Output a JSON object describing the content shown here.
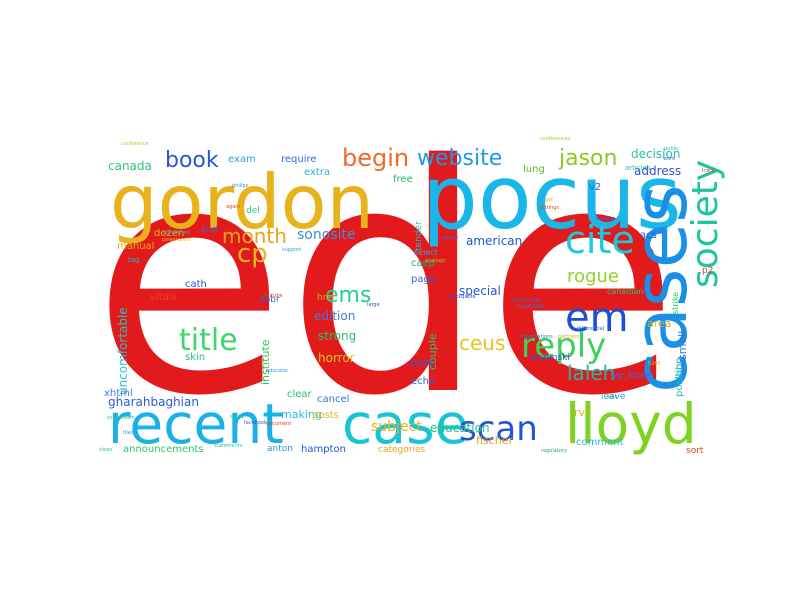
{
  "words": [
    {
      "text": "ede",
      "color": "#e31a1c"
    },
    {
      "text": "pocus",
      "color": "#1ab6e8"
    },
    {
      "text": "gordon",
      "color": "#e8b21c"
    },
    {
      "text": "cases",
      "color": "#1a8fe8"
    },
    {
      "text": "recent",
      "color": "#1ab0e8"
    },
    {
      "text": "case",
      "color": "#18c3d6"
    },
    {
      "text": "lloyd",
      "color": "#7ed321"
    },
    {
      "text": "em",
      "color": "#1b50d6"
    },
    {
      "text": "cite",
      "color": "#19c9e0"
    },
    {
      "text": "society",
      "color": "#1bc59f"
    },
    {
      "text": "reply",
      "color": "#3bd15a"
    },
    {
      "text": "scan",
      "color": "#2154d8"
    },
    {
      "text": "title",
      "color": "#3fd66c"
    },
    {
      "text": "website",
      "color": "#1a9be8"
    },
    {
      "text": "begin",
      "color": "#f06a2a"
    },
    {
      "text": "book",
      "color": "#2a55d6"
    },
    {
      "text": "jason",
      "color": "#8ac926"
    },
    {
      "text": "cp",
      "color": "#e6b91e"
    },
    {
      "text": "month",
      "color": "#e6a51e"
    },
    {
      "text": "ems",
      "color": "#1fd196"
    },
    {
      "text": "ceus",
      "color": "#e6c21e"
    },
    {
      "text": "laleh",
      "color": "#20b9a1"
    },
    {
      "text": "rogue",
      "color": "#8fd22b"
    },
    {
      "text": "sonosite",
      "color": "#3f8cd9"
    },
    {
      "text": "subject",
      "color": "#e0b51e"
    },
    {
      "text": "education",
      "color": "#28c57a"
    },
    {
      "text": "gharahbaghian",
      "color": "#2a5bd6"
    },
    {
      "text": "uncomfortable",
      "color": "#28c2c6"
    },
    {
      "text": "edition",
      "color": "#3f7be0"
    },
    {
      "text": "strong",
      "color": "#20c36a"
    },
    {
      "text": "horror",
      "color": "#e0c61e"
    },
    {
      "text": "special",
      "color": "#2b55d6"
    },
    {
      "text": "american",
      "color": "#1b55d0"
    },
    {
      "text": "address",
      "color": "#2a4fd4"
    },
    {
      "text": "decision",
      "color": "#27c3a0"
    },
    {
      "text": "canada",
      "color": "#2fc476"
    },
    {
      "text": "exam",
      "color": "#2aa0e0"
    },
    {
      "text": "require",
      "color": "#3a63d6"
    },
    {
      "text": "extra",
      "color": "#28b6cc"
    },
    {
      "text": "free",
      "color": "#2ab85f"
    },
    {
      "text": "lung",
      "color": "#5cbb2a"
    },
    {
      "text": "dozen",
      "color": "#e0b51e"
    },
    {
      "text": "end",
      "color": "#3a68d2"
    },
    {
      "text": "del",
      "color": "#2bc28c"
    },
    {
      "text": "manual",
      "color": "#e0b21e"
    },
    {
      "text": "caep",
      "color": "#20a890"
    },
    {
      "text": "page",
      "color": "#2f62d6"
    },
    {
      "text": "acs",
      "color": "#2b61d6"
    },
    {
      "text": "v2",
      "color": "#2a6ad6"
    },
    {
      "text": "cath",
      "color": "#2558d0"
    },
    {
      "text": "vitals",
      "color": "#e44422"
    },
    {
      "text": "skin",
      "color": "#27b39a"
    },
    {
      "text": "abbr",
      "color": "#2a5fd6"
    },
    {
      "text": "href",
      "color": "#e0a51e"
    },
    {
      "text": "institute",
      "color": "#35c35a"
    },
    {
      "text": "couple",
      "color": "#38c36a"
    },
    {
      "text": "peds",
      "color": "#2a5ad4"
    },
    {
      "text": "echo",
      "color": "#3060d6"
    },
    {
      "text": "olszynski",
      "color": "#2a4fd0"
    },
    {
      "text": "canadian",
      "color": "#2fbe72"
    },
    {
      "text": "area",
      "color": "#d4b620"
    },
    {
      "text": "small",
      "color": "#3a73d6"
    },
    {
      "text": "lab",
      "color": "#38b2cc"
    },
    {
      "text": "position",
      "color": "#2bb3c6"
    },
    {
      "text": "strike",
      "color": "#2ac06e"
    },
    {
      "text": "p2",
      "color": "#e04422"
    },
    {
      "text": "xhtml",
      "color": "#3c7bd6"
    },
    {
      "text": "making",
      "color": "#27bedc"
    },
    {
      "text": "clear",
      "color": "#2bc07a"
    },
    {
      "text": "cancel",
      "color": "#3a70d6"
    },
    {
      "text": "posts",
      "color": "#e0b21e"
    },
    {
      "text": "fischer",
      "color": "#e0a51e"
    },
    {
      "text": "rv",
      "color": "#e0b21e"
    },
    {
      "text": "leave",
      "color": "#2a9ad6"
    },
    {
      "text": "wp_footer",
      "color": "#3a6cd6"
    },
    {
      "text": "comment",
      "color": "#2bb7d0"
    },
    {
      "text": "sort",
      "color": "#e44422"
    },
    {
      "text": "announcements",
      "color": "#2ec46a"
    },
    {
      "text": "anton",
      "color": "#2b95d0"
    },
    {
      "text": "hampton",
      "color": "#2155d6"
    },
    {
      "text": "categories",
      "color": "#e0a81e"
    },
    {
      "text": "tender",
      "color": "#2ab5c6"
    },
    {
      "text": "select",
      "color": "#3aa0d6"
    },
    {
      "text": "tag",
      "color": "#27bcc6"
    },
    {
      "text": "articles",
      "color": "#2bc2a0"
    },
    {
      "text": "conference",
      "color": "#9ad33a"
    },
    {
      "text": "support",
      "color": "#2aa0e0"
    },
    {
      "text": "organizations",
      "color": "#2a7fd6"
    },
    {
      "text": "partners",
      "color": "#e0a81e"
    },
    {
      "text": "differential",
      "color": "#2b62d6"
    },
    {
      "text": "solostream",
      "color": "#2bc290"
    },
    {
      "text": "youtube",
      "color": "#e04422"
    },
    {
      "text": "homemade",
      "color": "#2a70d6"
    },
    {
      "text": "regulatory",
      "color": "#2aa07e"
    },
    {
      "text": "facebook",
      "color": "#2a62d6"
    },
    {
      "text": "statements",
      "color": "#38c2a0"
    },
    {
      "text": "blackquote",
      "color": "#2b55d6"
    },
    {
      "text": "analogic",
      "color": "#8ad33a"
    },
    {
      "text": "settings",
      "color": "#e04422"
    },
    {
      "text": "philips",
      "color": "#2a9ad6"
    },
    {
      "text": "device",
      "color": "#3a68d6"
    },
    {
      "text": "large",
      "color": "#2a55d6"
    },
    {
      "text": "edit",
      "color": "#2bc2a0"
    },
    {
      "text": "fulfill",
      "color": "#e0a81e"
    },
    {
      "text": "clean",
      "color": "#2bc28c"
    },
    {
      "text": "unsolicited",
      "color": "#2a80d6"
    },
    {
      "text": "ultrasound",
      "color": "#2fb6cc"
    },
    {
      "text": "educator",
      "color": "#2a9ad6"
    },
    {
      "text": "powerpoint",
      "color": "#e0b21e"
    },
    {
      "text": "again",
      "color": "#e04422"
    },
    {
      "text": "conferences",
      "color": "#8ad33a"
    },
    {
      "text": "public",
      "color": "#2bc2a0"
    },
    {
      "text": "work",
      "color": "#3a68d6"
    },
    {
      "text": "track",
      "color": "#e04422"
    },
    {
      "text": "gel",
      "color": "#e0b21e"
    },
    {
      "text": "tiled",
      "color": "#2a9ad6"
    },
    {
      "text": "spoke",
      "color": "#2bc28c"
    },
    {
      "text": "document",
      "color": "#e04422"
    },
    {
      "text": "surveys",
      "color": "#2a62d6"
    }
  ]
}
